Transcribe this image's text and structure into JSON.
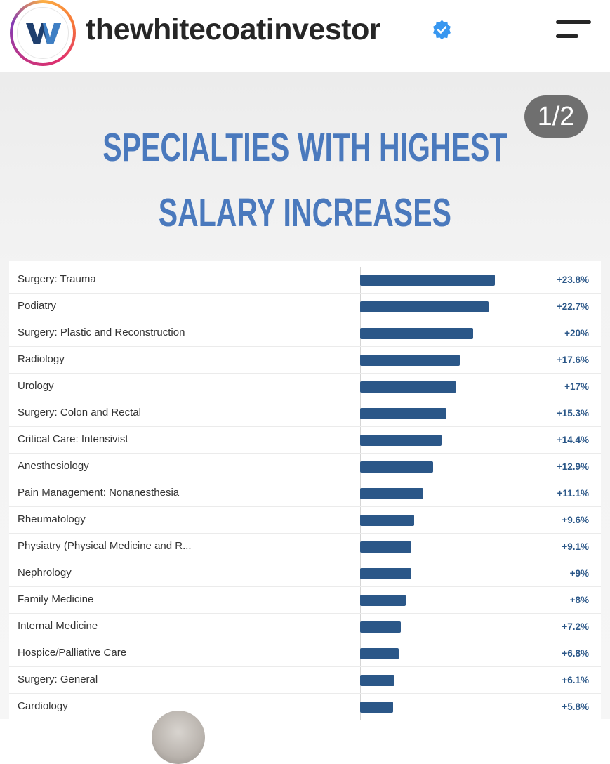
{
  "header": {
    "username": "thewhitecoatinvestor",
    "avatar_icon": "wci-logo-icon",
    "verified_icon": "verified-badge-icon",
    "menu_icon": "hamburger-menu-icon"
  },
  "post": {
    "slide_counter": "1/2",
    "title_line1": "SPECIALTIES WITH HIGHEST",
    "title_line2": "SALARY INCREASES",
    "colors": {
      "title": "#4a79bd",
      "bar": "#2b5788",
      "value": "#2b5788"
    }
  },
  "chart_data": {
    "type": "bar",
    "orientation": "horizontal",
    "categories": [
      "Surgery: Trauma",
      "Podiatry",
      "Surgery: Plastic and Reconstruction",
      "Radiology",
      "Urology",
      "Surgery: Colon and Rectal",
      "Critical Care: Intensivist",
      "Anesthesiology",
      "Pain Management: Nonanesthesia",
      "Rheumatology",
      "Physiatry (Physical Medicine and R...",
      "Nephrology",
      "Family Medicine",
      "Internal Medicine",
      "Hospice/Palliative Care",
      "Surgery: General",
      "Cardiology"
    ],
    "values": [
      23.8,
      22.7,
      20,
      17.6,
      17,
      15.3,
      14.4,
      12.9,
      11.1,
      9.6,
      9.1,
      9,
      8,
      7.2,
      6.8,
      6.1,
      5.8
    ],
    "value_labels": [
      "+23.8%",
      "+22.7%",
      "+20%",
      "+17.6%",
      "+17%",
      "+15.3%",
      "+14.4%",
      "+12.9%",
      "+11.1%",
      "+9.6%",
      "+9.1%",
      "+9%",
      "+8%",
      "+7.2%",
      "+6.8%",
      "+6.1%",
      "+5.8%"
    ],
    "xlim": [
      0,
      30
    ],
    "grid": false
  }
}
